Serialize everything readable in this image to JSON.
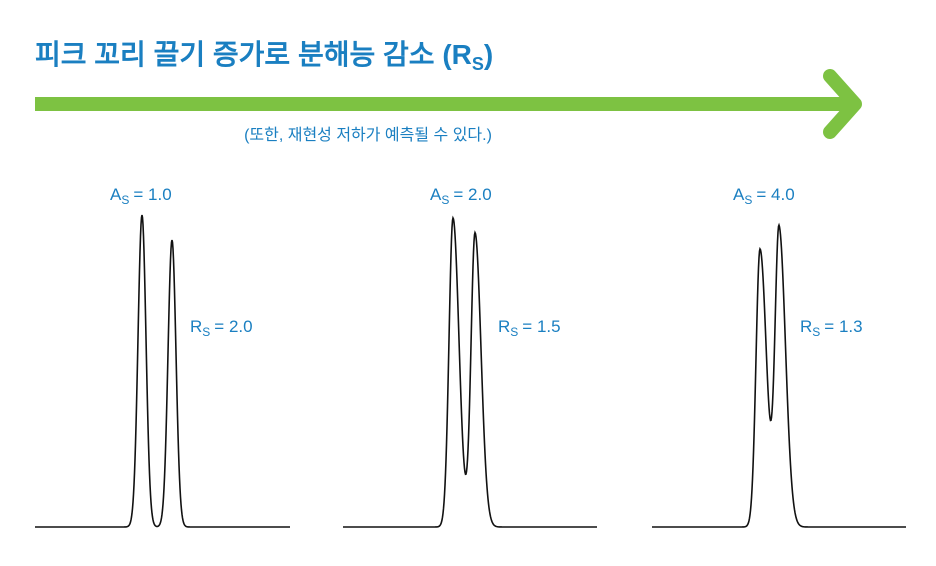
{
  "header": {
    "title": "피크 꼬리 끌기 증가로 분해능 감소",
    "title_symbol": {
      "open": "(R",
      "subscript": "S",
      "close": ")"
    },
    "subtitle": "(또한, 재현성 저하가 예측될 수 있다.)"
  },
  "panels": [
    {
      "asymmetry": {
        "symbol": "A",
        "subscript": "S",
        "value": "= 1.0"
      },
      "resolution": {
        "symbol": "R",
        "subscript": "S",
        "value": "= 2.0"
      }
    },
    {
      "asymmetry": {
        "symbol": "A",
        "subscript": "S",
        "value": "= 2.0"
      },
      "resolution": {
        "symbol": "R",
        "subscript": "S",
        "value": "= 1.5"
      }
    },
    {
      "asymmetry": {
        "symbol": "A",
        "subscript": "S",
        "value": "= 4.0"
      },
      "resolution": {
        "symbol": "R",
        "subscript": "S",
        "value": "= 1.3"
      }
    }
  ]
}
